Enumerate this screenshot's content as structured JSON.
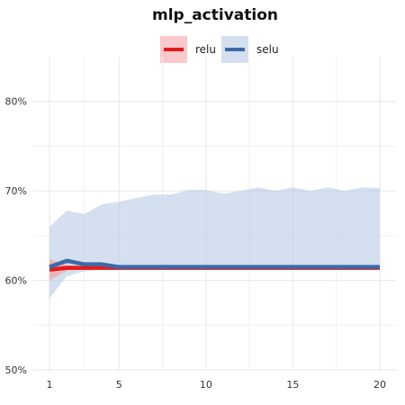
{
  "chart_data": {
    "type": "line",
    "title": "mlp_activation",
    "xlabel": "",
    "ylabel": "",
    "x": [
      1,
      2,
      3,
      4,
      5,
      6,
      7,
      8,
      9,
      10,
      11,
      12,
      13,
      14,
      15,
      16,
      17,
      18,
      19,
      20
    ],
    "xlim": [
      1,
      20
    ],
    "ylim": [
      0.5,
      0.85
    ],
    "x_ticks": [
      1,
      5,
      10,
      15,
      20
    ],
    "y_ticks": [
      0.5,
      0.6,
      0.7,
      0.8
    ],
    "y_tick_labels": [
      "50%",
      "60%",
      "70%",
      "80%"
    ],
    "grid": true,
    "legend_position": "top",
    "series": [
      {
        "name": "relu",
        "color": "#E41A1C",
        "band_color": "#F5A3A6",
        "values": [
          0.612,
          0.614,
          0.614,
          0.614,
          0.614,
          0.614,
          0.614,
          0.614,
          0.614,
          0.614,
          0.614,
          0.614,
          0.614,
          0.614,
          0.614,
          0.614,
          0.614,
          0.614,
          0.614,
          0.614
        ],
        "lower": [
          0.6,
          0.611,
          0.612,
          0.612,
          0.613,
          0.613,
          0.613,
          0.613,
          0.613,
          0.613,
          0.613,
          0.613,
          0.613,
          0.613,
          0.613,
          0.613,
          0.613,
          0.613,
          0.613,
          0.613
        ],
        "upper": [
          0.624,
          0.617,
          0.616,
          0.616,
          0.615,
          0.615,
          0.615,
          0.615,
          0.615,
          0.615,
          0.615,
          0.615,
          0.615,
          0.615,
          0.615,
          0.615,
          0.615,
          0.615,
          0.615,
          0.615
        ]
      },
      {
        "name": "selu",
        "color": "#3D6AA8",
        "band_color": "#B8CBE4",
        "values": [
          0.615,
          0.622,
          0.618,
          0.618,
          0.615,
          0.615,
          0.615,
          0.615,
          0.615,
          0.615,
          0.615,
          0.615,
          0.615,
          0.615,
          0.615,
          0.615,
          0.615,
          0.615,
          0.615,
          0.615
        ],
        "lower": [
          0.58,
          0.605,
          0.61,
          0.612,
          0.613,
          0.613,
          0.613,
          0.613,
          0.613,
          0.613,
          0.613,
          0.613,
          0.613,
          0.613,
          0.613,
          0.613,
          0.613,
          0.613,
          0.613,
          0.613
        ],
        "upper": [
          0.66,
          0.678,
          0.674,
          0.685,
          0.688,
          0.692,
          0.696,
          0.696,
          0.701,
          0.701,
          0.697,
          0.7,
          0.704,
          0.7,
          0.704,
          0.7,
          0.704,
          0.7,
          0.704,
          0.703
        ]
      }
    ]
  }
}
